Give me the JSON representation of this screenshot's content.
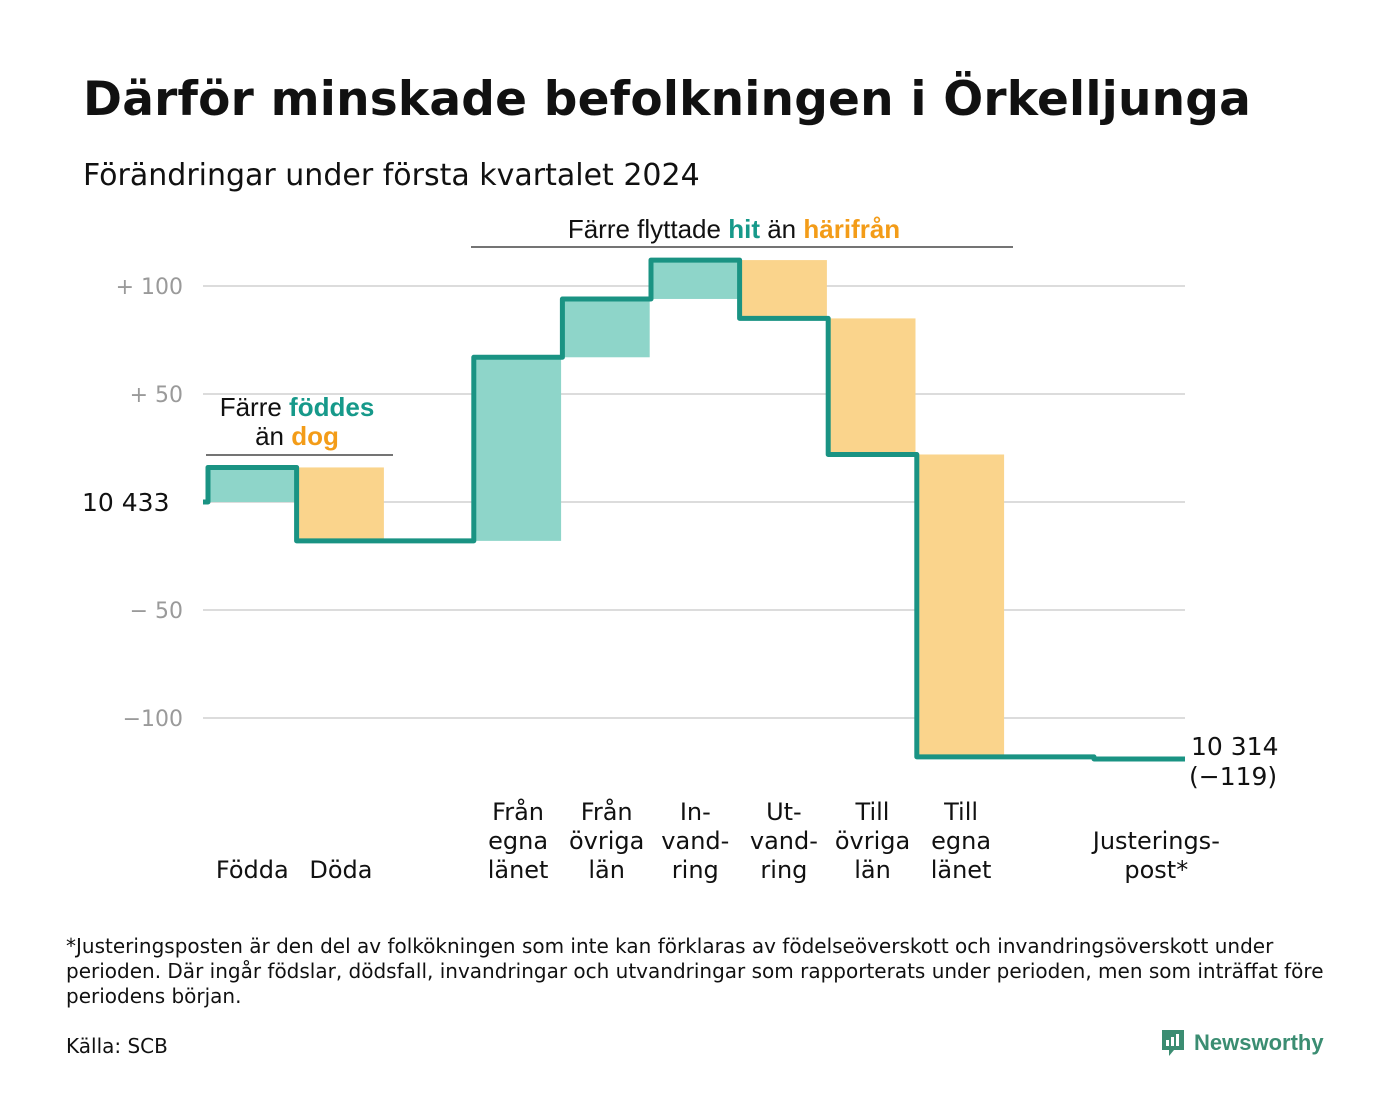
{
  "title": "Därför minskade befolkningen i Örkelljunga",
  "subtitle": "Förändringar under första kvartalet 2024",
  "colors": {
    "increase": "#8ed5c9",
    "decrease": "#fad48c",
    "line": "#1a9383",
    "accent_increase": "#16998a",
    "accent_decrease": "#f39c18",
    "grid": "#dcdcdc",
    "tick": "#9a9a9a"
  },
  "chart_data": {
    "type": "waterfall",
    "start_label": "10  433",
    "end_label_value": "10 314",
    "end_label_change": "(−119)",
    "start_value": 10433,
    "end_value": 10314,
    "ylim": [
      -119,
      112
    ],
    "y_ticks": [
      {
        "value": 100,
        "label": "+  100"
      },
      {
        "value": 50,
        "label": "+  50"
      },
      {
        "value": 0,
        "label": ""
      },
      {
        "value": -50,
        "label": "−  50"
      },
      {
        "value": -100,
        "label": "−100"
      }
    ],
    "grid": true,
    "categories": [
      {
        "label": [
          "Födda"
        ],
        "change": 16,
        "kind": "increase"
      },
      {
        "label": [
          "Döda"
        ],
        "change": -34,
        "kind": "decrease"
      },
      {
        "label": [],
        "change": 0,
        "kind": "none"
      },
      {
        "label": [
          "Från",
          "egna",
          "länet"
        ],
        "change": 85,
        "kind": "increase"
      },
      {
        "label": [
          "Från",
          "övriga",
          "län"
        ],
        "change": 27,
        "kind": "increase"
      },
      {
        "label": [
          "In-",
          "vand-",
          "ring"
        ],
        "change": 18,
        "kind": "increase"
      },
      {
        "label": [
          "Ut-",
          "vand-",
          "ring"
        ],
        "change": -27,
        "kind": "decrease"
      },
      {
        "label": [
          "Till",
          "övriga",
          "län"
        ],
        "change": -63,
        "kind": "decrease"
      },
      {
        "label": [
          "Till",
          "egna",
          "länet"
        ],
        "change": -140,
        "kind": "decrease"
      },
      {
        "label": [],
        "change": 0,
        "kind": "none"
      },
      {
        "label": [
          "Justerings-",
          "post*"
        ],
        "change": -1,
        "kind": "adjustment"
      }
    ],
    "annotations": [
      {
        "id": "births",
        "lines": [
          [
            {
              "text": "Färre",
              "accent": ""
            },
            {
              "text": "föddes",
              "accent": "increase"
            }
          ],
          [
            {
              "text": "än",
              "accent": ""
            },
            {
              "text": "dog",
              "accent": "decrease"
            }
          ]
        ]
      },
      {
        "id": "moves",
        "lines": [
          [
            {
              "text": "Färre flyttade",
              "accent": ""
            },
            {
              "text": "hit",
              "accent": "increase"
            },
            {
              "text": "än",
              "accent": ""
            },
            {
              "text": "härifrån",
              "accent": "decrease"
            }
          ]
        ]
      }
    ]
  },
  "footnote": "*Justeringsposten är den del av folkökningen som inte kan förklaras av födelseöverskott och invandringsöverskott under perioden. Där ingår födslar, dödsfall, invandringar och utvandringar som rapporterats under perioden, men som inträffat före periodens början.",
  "source": "Källa: SCB",
  "brand": {
    "name": "Newsworthy",
    "icon": "newsworthy-logo-icon"
  }
}
